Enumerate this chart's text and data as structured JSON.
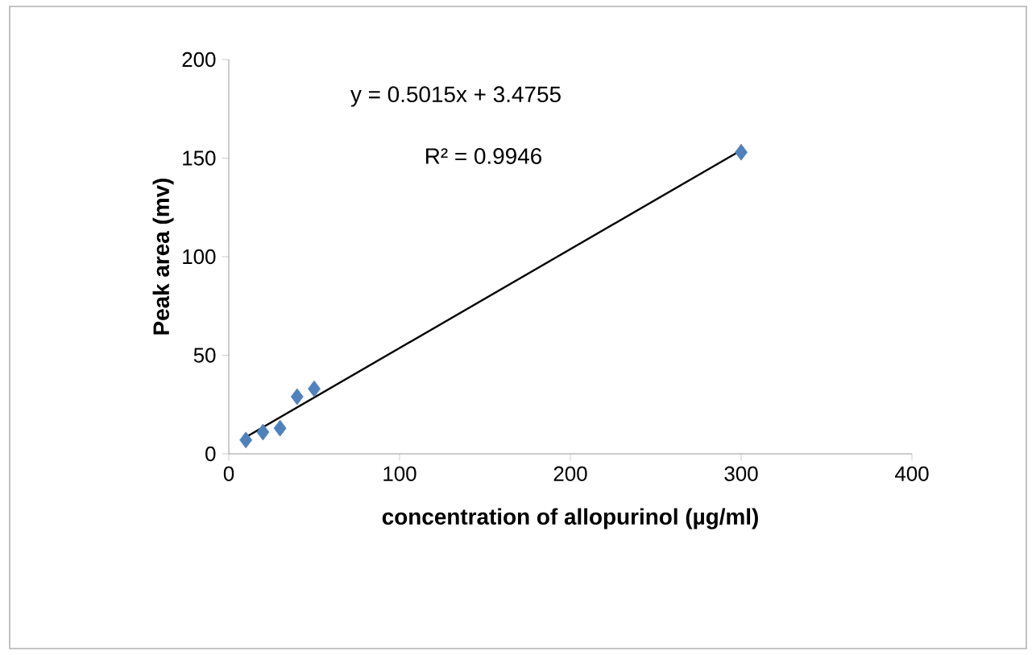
{
  "chart_data": {
    "type": "scatter",
    "xlabel": "concentration of allopurinol (µg/ml)",
    "ylabel": "Peak area (mv)",
    "annotations": [
      "y = 0.5015x + 3.4755",
      "R² = 0.9946"
    ],
    "xlim": [
      0,
      400
    ],
    "ylim": [
      0,
      200
    ],
    "xticks": [
      0,
      100,
      200,
      300,
      400
    ],
    "yticks": [
      0,
      50,
      100,
      150,
      200
    ],
    "grid": false,
    "marker": "diamond",
    "series": [
      {
        "color": "#4f81bd",
        "x": [
          10,
          20,
          30,
          40,
          50,
          300
        ],
        "values": [
          7,
          11,
          13,
          29,
          33,
          153
        ]
      },
      {
        "type": "line",
        "color": "#000000",
        "x": [
          10,
          300
        ],
        "values": [
          8.5,
          154
        ],
        "marker": "none"
      }
    ]
  }
}
